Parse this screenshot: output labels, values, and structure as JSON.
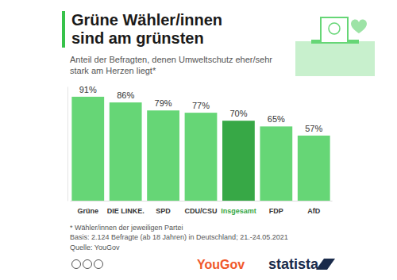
{
  "chart_data": {
    "type": "bar",
    "title": "Grüne Wähler/innen sind am grünsten",
    "subtitle": "Anteil der Befragten, denen Umweltschutz eher/sehr stark am Herzen liegt*",
    "categories": [
      "Grüne",
      "DIE LINKE.",
      "SPD",
      "CDU/CSU",
      "Insgesamt",
      "FDP",
      "AfD"
    ],
    "values": [
      91,
      86,
      79,
      77,
      70,
      65,
      57
    ],
    "value_labels": [
      "91%",
      "86%",
      "79%",
      "77%",
      "70%",
      "65%",
      "57%"
    ],
    "colors": [
      "#66d676",
      "#66d676",
      "#66d676",
      "#66d676",
      "#37a846",
      "#66d676",
      "#66d676"
    ],
    "ylim": [
      0,
      100
    ],
    "yticks": [],
    "grid": false,
    "data_labels": true,
    "tick_labels": "x",
    "footnote": "* Wähler/innen der jeweiligen Partei",
    "base": "Basis: 2.124 Befragte (ab 18 Jahren) in Deutschland; 21.-24.05.2021",
    "source": "Quelle: YouGov",
    "logos": [
      "YouGov",
      "statista"
    ]
  }
}
